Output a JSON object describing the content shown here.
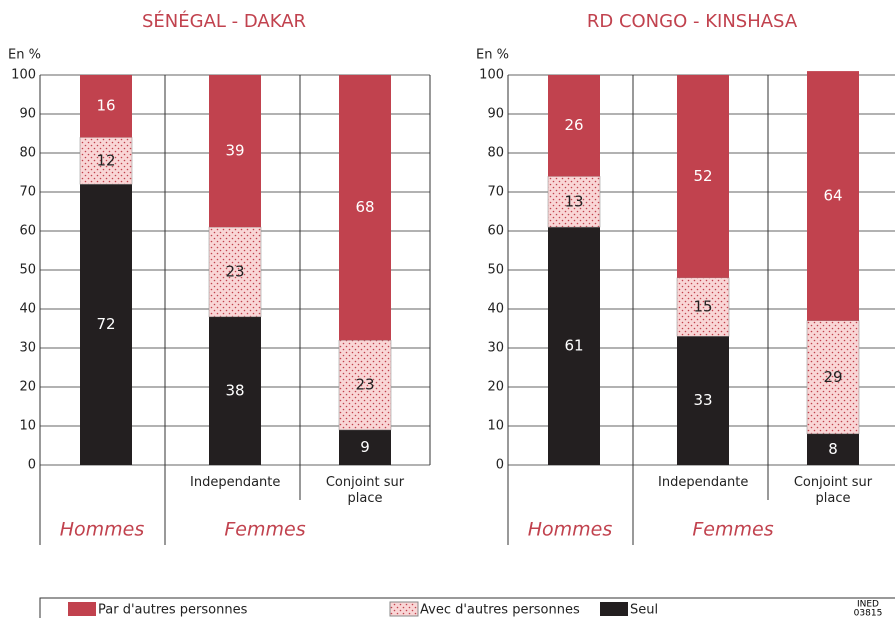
{
  "chart_data": [
    {
      "type": "stacked-bar",
      "title": "SÉNÉGAL - DAKAR",
      "ylabel": "En %",
      "categories": [
        null,
        "Independante",
        "Conjoint sur place"
      ],
      "groups": [
        "Hommes",
        "Femmes"
      ],
      "series": [
        {
          "name": "Seul",
          "color": "#231f20",
          "values": [
            72,
            38,
            9
          ]
        },
        {
          "name": "Avec d'autres personnes",
          "color": "#f9d6d6",
          "pattern": "dots",
          "values": [
            12,
            23,
            23
          ]
        },
        {
          "name": "Par d'autres personnes",
          "color": "#c1424e",
          "values": [
            16,
            39,
            68
          ]
        }
      ],
      "ylim": [
        0,
        100
      ],
      "yticks": [
        0,
        10,
        20,
        30,
        40,
        50,
        60,
        70,
        80,
        90,
        100
      ],
      "grid": true
    },
    {
      "type": "stacked-bar",
      "title": "RD CONGO - KINSHASA",
      "ylabel": "En %",
      "categories": [
        null,
        "Independante",
        "Conjoint sur place"
      ],
      "groups": [
        "Hommes",
        "Femmes"
      ],
      "series": [
        {
          "values": [
            61,
            33,
            8
          ]
        },
        {
          "values": [
            13,
            15,
            29
          ]
        },
        {
          "values": [
            26,
            52,
            64
          ]
        }
      ],
      "ylim": [
        0,
        100
      ],
      "yticks": [
        0,
        10,
        20,
        30,
        40,
        50,
        60,
        70,
        80,
        90,
        100
      ],
      "grid": true
    }
  ],
  "credit": [
    "INED",
    "03815"
  ]
}
